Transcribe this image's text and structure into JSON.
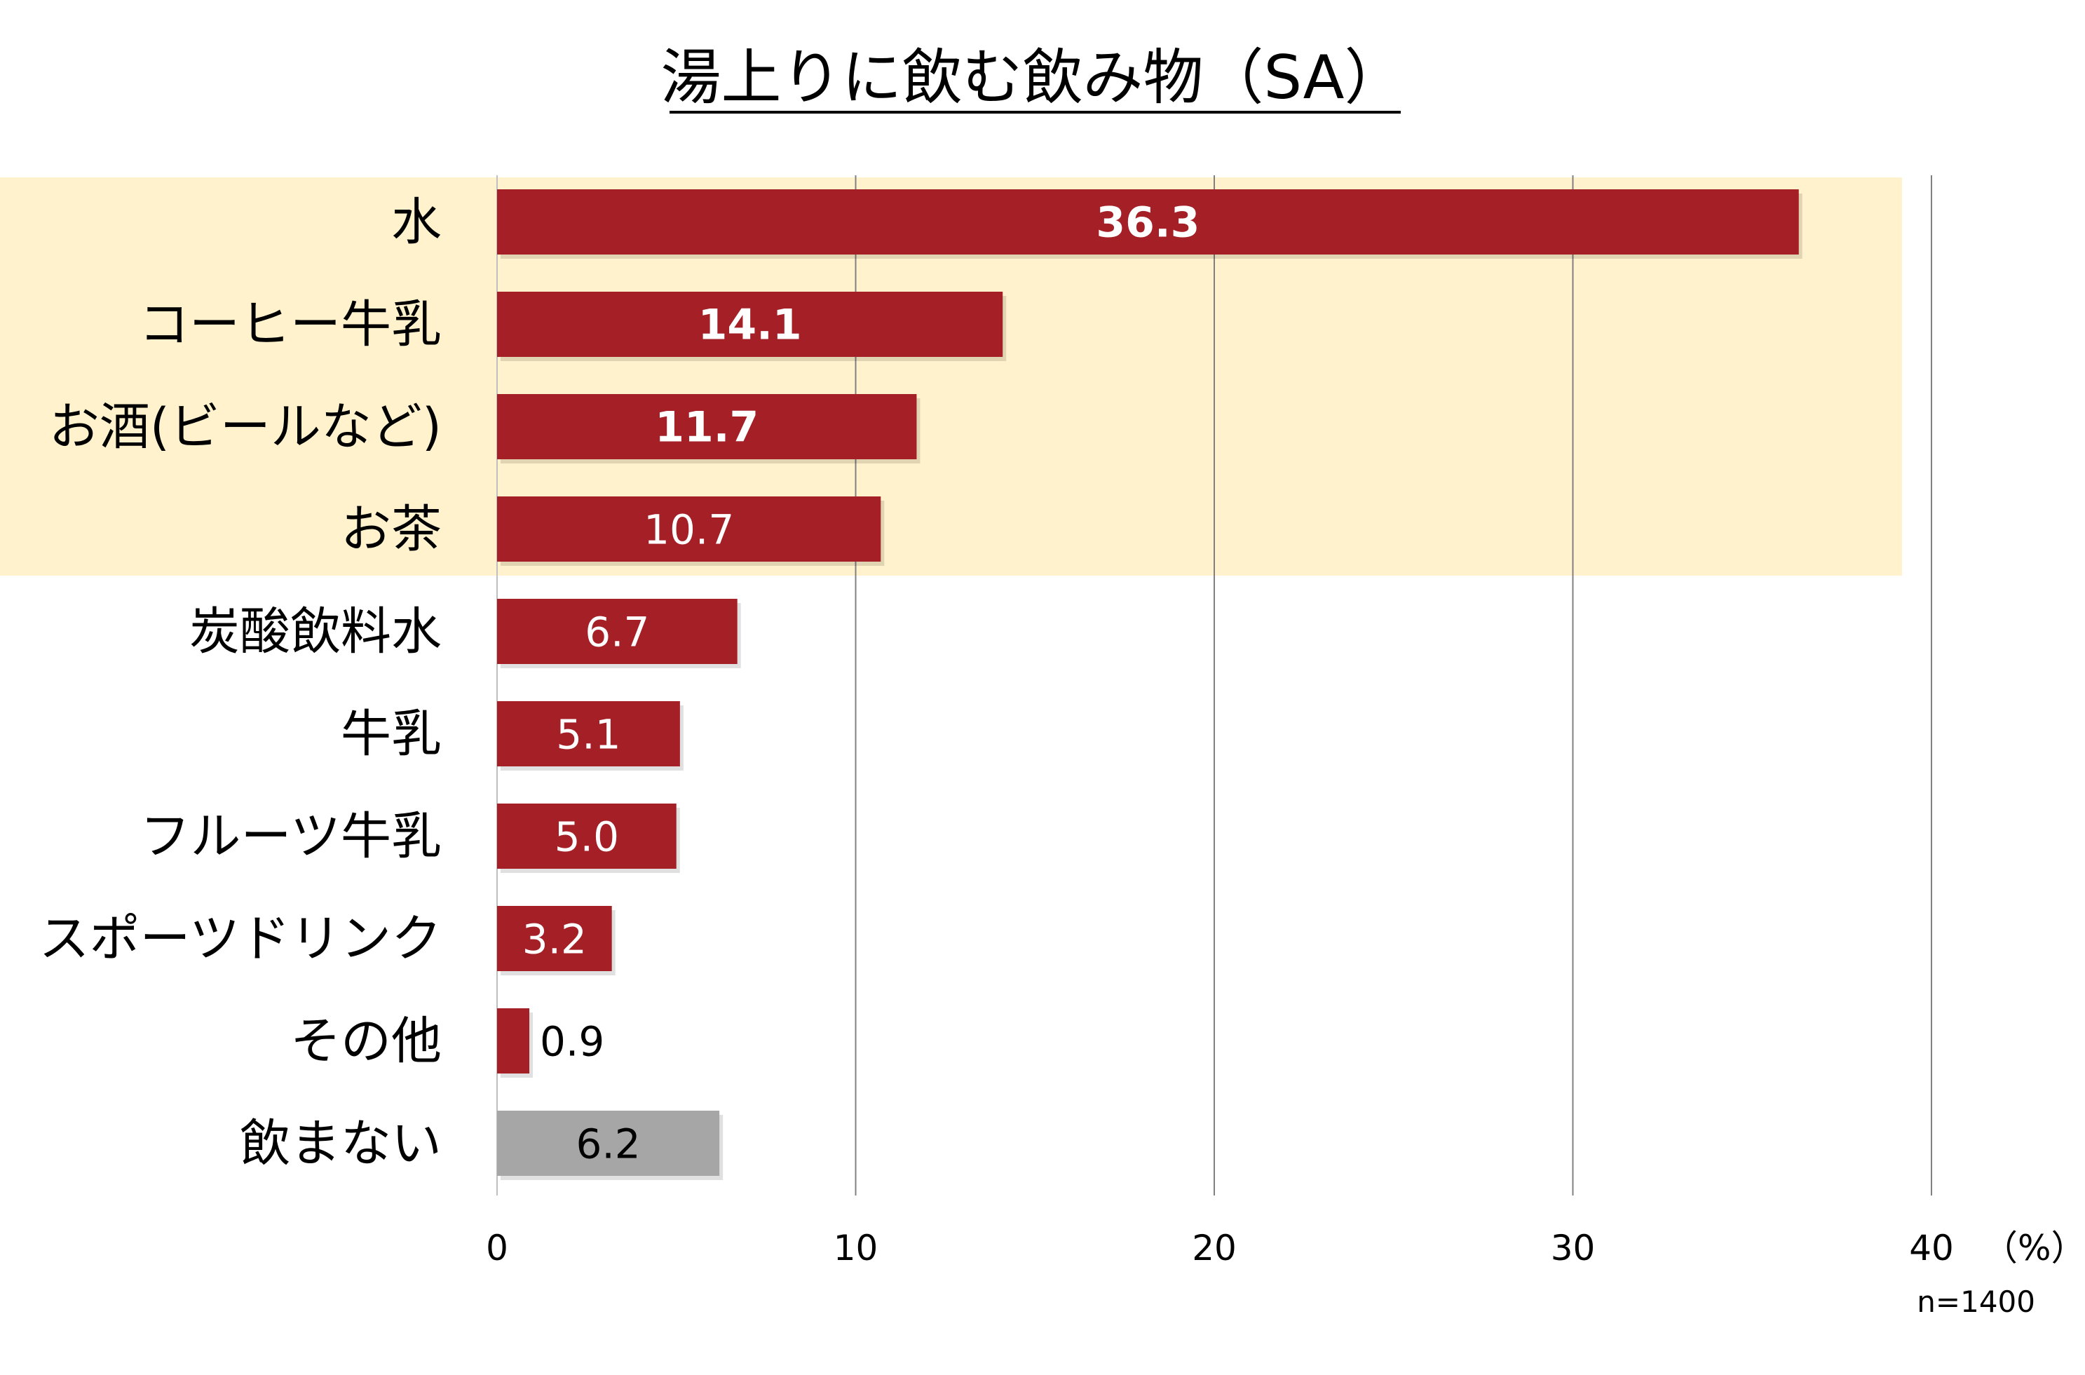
{
  "chart_data": {
    "type": "bar",
    "orientation": "horizontal",
    "title": "湯上りに飲む飲み物（SA）",
    "categories": [
      "水",
      "コーヒー牛乳",
      "お酒(ビールなど)",
      "お茶",
      "炭酸飲料水",
      "牛乳",
      "フルーツ牛乳",
      "スポーツドリンク",
      "その他",
      "飲まない"
    ],
    "values": [
      36.3,
      14.1,
      11.7,
      10.7,
      6.7,
      5.1,
      5.0,
      3.2,
      0.9,
      6.2
    ],
    "value_labels": [
      "36.3",
      "14.1",
      "11.7",
      "10.7",
      "6.7",
      "5.1",
      "5.0",
      "3.2",
      "0.9",
      "6.2"
    ],
    "xlim": [
      0,
      40
    ],
    "x_ticks": [
      0,
      10,
      20,
      30,
      40
    ],
    "x_tick_labels": [
      "0",
      "10",
      "20",
      "30",
      "40"
    ],
    "unit_label": "（%）",
    "sample_note": "n=1400",
    "highlighted_top_n": 4,
    "grid": true,
    "legend": false,
    "colors": {
      "bar": "#A51F27",
      "bar_none": "#A6A6A6",
      "highlight_band": "#FFF2CC",
      "grid": "#808080",
      "text": "#000000",
      "label_inside": "#ffffff"
    }
  }
}
